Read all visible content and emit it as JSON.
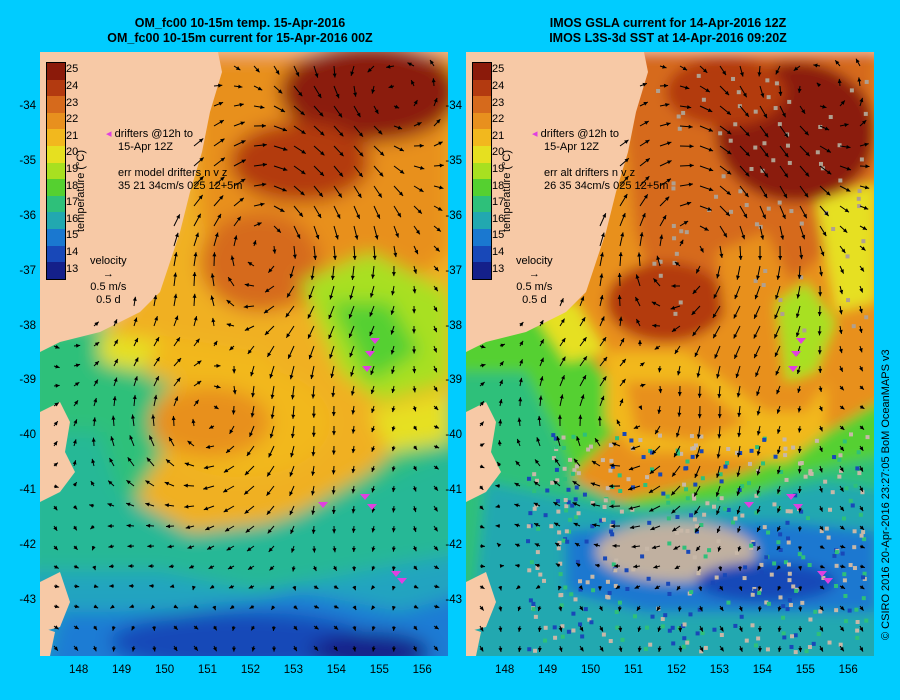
{
  "left_panel": {
    "title_line1": "OM_fc00 10-15m temp. 15-Apr-2016",
    "title_line2": "OM_fc00 10-15m current for 15-Apr-2016 00Z",
    "drifters_line1": "drifters @12h to",
    "drifters_line2": "15-Apr 12Z",
    "err_line1": "err model drifters n v z",
    "err_line2": "35 21 34cm/s 025 12+5m"
  },
  "right_panel": {
    "title_line1": "IMOS GSLA current for 14-Apr-2016 12Z",
    "title_line2": "IMOS L3S-3d SST at 14-Apr-2016 09:20Z",
    "drifters_line1": "drifters @12h to",
    "drifters_line2": "15-Apr 12Z",
    "err_line1": "err alt drifters n v z",
    "err_line2": "26 35 34cm/s 025 12+5m"
  },
  "velocity_legend": {
    "label": "velocity",
    "speed": "0.5 m/s",
    "duration": "0.5 d"
  },
  "colorbar": {
    "label": "temperature (°C)",
    "ticks": [
      "25",
      "24",
      "23",
      "22",
      "21",
      "20",
      "19",
      "18",
      "17",
      "16",
      "15",
      "14",
      "13"
    ],
    "colors": [
      "#8b1a0a",
      "#b33a10",
      "#d66a1c",
      "#e8901e",
      "#f2b81e",
      "#e6e020",
      "#a8e020",
      "#55d030",
      "#2ec07a",
      "#22a8b0",
      "#1a78d0",
      "#1848b8",
      "#14208a"
    ]
  },
  "credit": "© CSIRO 2016  20-Apr-2016 23:27:05 BoM OceanMAPS v3",
  "chart_data": [
    {
      "type": "heatmap",
      "title": "OM_fc00 10-15m temp. 15-Apr-2016 / OM_fc00 10-15m current for 15-Apr-2016 00Z",
      "x_ticks": [
        "148",
        "149",
        "150",
        "151",
        "152",
        "153",
        "154",
        "155",
        "156"
      ],
      "y_ticks": [
        "-34",
        "-35",
        "-36",
        "-37",
        "-38",
        "-39",
        "-40",
        "-41",
        "-42",
        "-43"
      ],
      "xlim": [
        147.1,
        156.6
      ],
      "ylim": [
        -44.0,
        -33.0
      ],
      "colorbar_range": [
        13,
        25
      ],
      "colorbar_unit": "temperature (°C)"
    },
    {
      "type": "heatmap",
      "title": "IMOS GSLA current for 14-Apr-2016 12Z / IMOS L3S-3d SST at 14-Apr-2016 09:20Z",
      "x_ticks": [
        "148",
        "149",
        "150",
        "151",
        "152",
        "153",
        "154",
        "155",
        "156"
      ],
      "y_ticks": [
        "-34",
        "-35",
        "-36",
        "-37",
        "-38",
        "-39",
        "-40",
        "-41",
        "-42",
        "-43"
      ],
      "xlim": [
        147.1,
        156.6
      ],
      "ylim": [
        -44.0,
        -33.0
      ],
      "colorbar_range": [
        13,
        25
      ],
      "colorbar_unit": "temperature (°C)"
    }
  ]
}
